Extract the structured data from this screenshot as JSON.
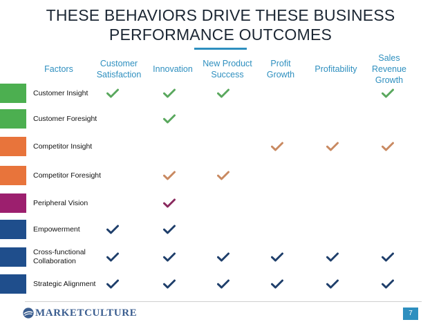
{
  "title_line1": "THESE BEHAVIORS DRIVE THESE BUSINESS",
  "title_line2": "PERFORMANCE OUTCOMES",
  "colors": {
    "title_rule": "#2e8fbf",
    "header_text": "#2e8fbf",
    "green": "#4caf50",
    "orange": "#e8743b",
    "purple": "#9c1f6e",
    "blue": "#1f4e8c",
    "check_green": "#5aa85e",
    "check_orange": "#c98a62",
    "check_purple": "#8a2a5e",
    "check_blue": "#1f3f6b",
    "page_badge": "#2e8fbf"
  },
  "headers": {
    "factors": "Factors",
    "customer_satisfaction": [
      "Customer",
      "Satisfaction"
    ],
    "innovation": "Innovation",
    "new_product_success": [
      "New Product",
      "Success"
    ],
    "profit_growth": [
      "Profit",
      "Growth"
    ],
    "profitability": "Profitability",
    "sales_revenue_growth": [
      "Sales",
      "Revenue",
      "Growth"
    ]
  },
  "rows": [
    {
      "label": [
        "Customer Insight"
      ],
      "color": "green",
      "checks": [
        true,
        true,
        true,
        false,
        false,
        true
      ]
    },
    {
      "label": [
        "Customer Foresight"
      ],
      "color": "green",
      "checks": [
        false,
        true,
        false,
        false,
        false,
        false
      ]
    },
    {
      "label": [
        "Competitor Insight"
      ],
      "color": "orange",
      "checks": [
        false,
        false,
        false,
        true,
        true,
        true
      ]
    },
    {
      "label": [
        "Competitor Foresight"
      ],
      "color": "orange",
      "checks": [
        false,
        true,
        true,
        false,
        false,
        false
      ]
    },
    {
      "label": [
        "Peripheral Vision"
      ],
      "color": "purple",
      "checks": [
        false,
        true,
        false,
        false,
        false,
        false
      ]
    },
    {
      "label": [
        "Empowerment"
      ],
      "color": "blue",
      "checks": [
        true,
        true,
        false,
        false,
        false,
        false
      ]
    },
    {
      "label": [
        "Cross-functional",
        "Collaboration"
      ],
      "color": "blue",
      "checks": [
        true,
        true,
        true,
        true,
        true,
        true
      ]
    },
    {
      "label": [
        "Strategic Alignment"
      ],
      "color": "blue",
      "checks": [
        true,
        true,
        true,
        true,
        true,
        true
      ]
    }
  ],
  "logo_text": "MARKETCULTURE",
  "page_number": "7"
}
